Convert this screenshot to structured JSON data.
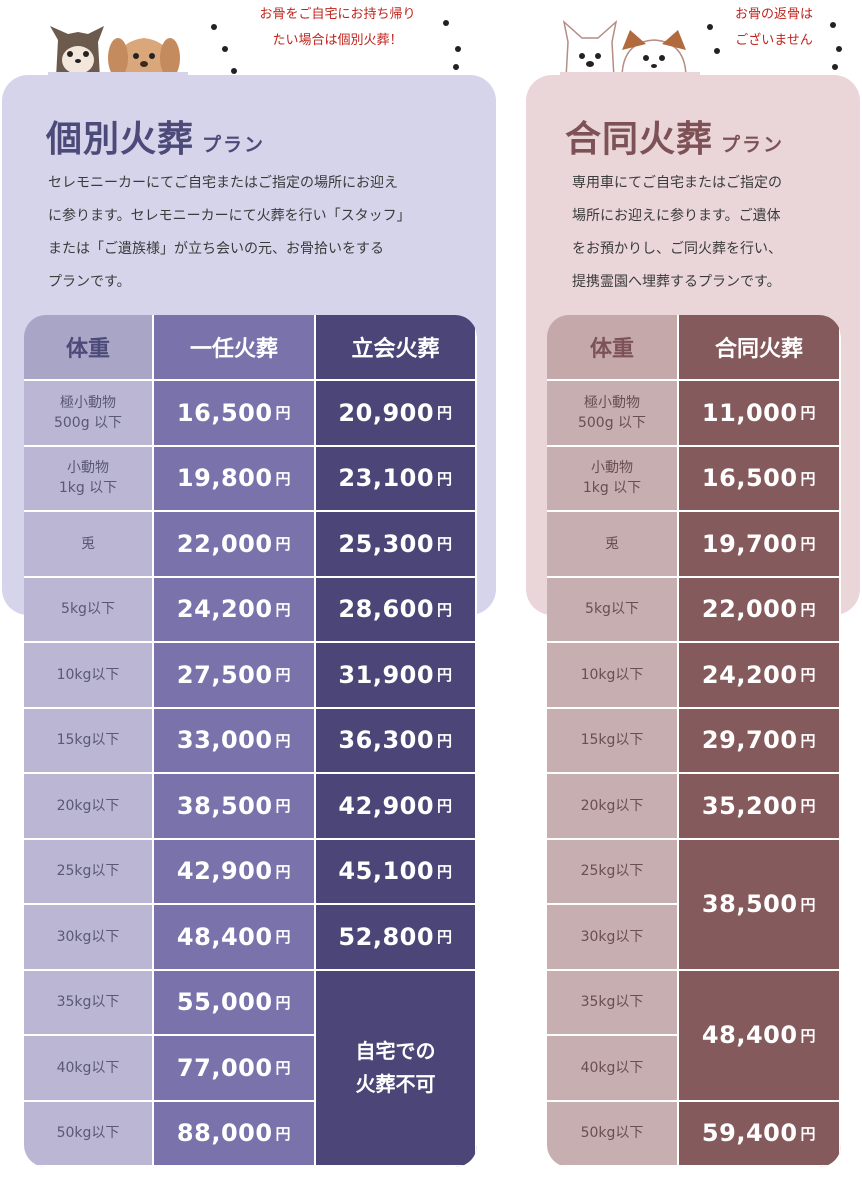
{
  "individual": {
    "title": "個別火葬",
    "title_sub": "プラン",
    "bubble": [
      "お骨をご自宅にお持ち帰り",
      "たい場合は個別火葬！"
    ],
    "description": [
      "セレモニーカーにてご自宅またはご指定の場所にお迎え",
      "に参ります。セレモニーカーにて火葬を行い「スタッフ」",
      "または「ご遺族様」が立ち会いの元、お骨拾いをする",
      "プランです。"
    ],
    "headers": [
      "体重",
      "一任火葬",
      "立会火葬"
    ],
    "currency": "円",
    "rows": [
      {
        "weight": [
          "極小動物",
          "500g 以下"
        ],
        "p1": "16,500",
        "p2": "20,900"
      },
      {
        "weight": [
          "小動物",
          "1kg 以下"
        ],
        "p1": "19,800",
        "p2": "23,100"
      },
      {
        "weight": [
          "兎"
        ],
        "p1": "22,000",
        "p2": "25,300"
      },
      {
        "weight": [
          "5kg以下"
        ],
        "p1": "24,200",
        "p2": "28,600"
      },
      {
        "weight": [
          "10kg以下"
        ],
        "p1": "27,500",
        "p2": "31,900"
      },
      {
        "weight": [
          "15kg以下"
        ],
        "p1": "33,000",
        "p2": "36,300"
      },
      {
        "weight": [
          "20kg以下"
        ],
        "p1": "38,500",
        "p2": "42,900"
      },
      {
        "weight": [
          "25kg以下"
        ],
        "p1": "42,900",
        "p2": "45,100"
      },
      {
        "weight": [
          "30kg以下"
        ],
        "p1": "48,400",
        "p2": "52,800"
      },
      {
        "weight": [
          "35kg以下"
        ],
        "p1": "55,000"
      },
      {
        "weight": [
          "40kg以下"
        ],
        "p1": "77,000"
      },
      {
        "weight": [
          "50kg以下"
        ],
        "p1": "88,000"
      }
    ],
    "merged_note": [
      "自宅での",
      "火葬不可"
    ],
    "colors": {
      "card": "#d6d4ea",
      "weight_col": "#bab6d4",
      "head_weight": "#a9a5c6",
      "col1": "#7a72ab",
      "col2": "#4b4677",
      "title": "#4c4a78"
    }
  },
  "joint": {
    "title": "合同火葬",
    "title_sub": "プラン",
    "bubble": [
      "お骨の返骨は",
      "ございません"
    ],
    "description": [
      "専用車にてご自宅またはご指定の",
      "場所にお迎えに参ります。ご遺体",
      "をお預かりし、ご同火葬を行い、",
      "提携霊園へ埋葬するプランです。"
    ],
    "headers": [
      "体重",
      "合同火葬"
    ],
    "currency": "円",
    "rows": [
      {
        "weight": [
          "極小動物",
          "500g 以下"
        ]
      },
      {
        "weight": [
          "小動物",
          "1kg 以下"
        ]
      },
      {
        "weight": [
          "兎"
        ]
      },
      {
        "weight": [
          "5kg以下"
        ]
      },
      {
        "weight": [
          "10kg以下"
        ]
      },
      {
        "weight": [
          "15kg以下"
        ]
      },
      {
        "weight": [
          "20kg以下"
        ]
      },
      {
        "weight": [
          "25kg以下"
        ]
      },
      {
        "weight": [
          "30kg以下"
        ]
      },
      {
        "weight": [
          "35kg以下"
        ]
      },
      {
        "weight": [
          "40kg以下"
        ]
      },
      {
        "weight": [
          "50kg以下"
        ]
      }
    ],
    "prices": [
      {
        "value": "11,000",
        "span": 1
      },
      {
        "value": "16,500",
        "span": 1
      },
      {
        "value": "19,700",
        "span": 1
      },
      {
        "value": "22,000",
        "span": 1
      },
      {
        "value": "24,200",
        "span": 1
      },
      {
        "value": "29,700",
        "span": 1
      },
      {
        "value": "35,200",
        "span": 1
      },
      {
        "value": "38,500",
        "span": 2
      },
      {
        "value": "48,400",
        "span": 2
      },
      {
        "value": "59,400",
        "span": 1
      }
    ],
    "colors": {
      "card": "#ead6d8",
      "weight_col": "#c7afb1",
      "head_weight": "#c4a8aa",
      "col1": "#855a5c",
      "title": "#7d5256"
    }
  }
}
